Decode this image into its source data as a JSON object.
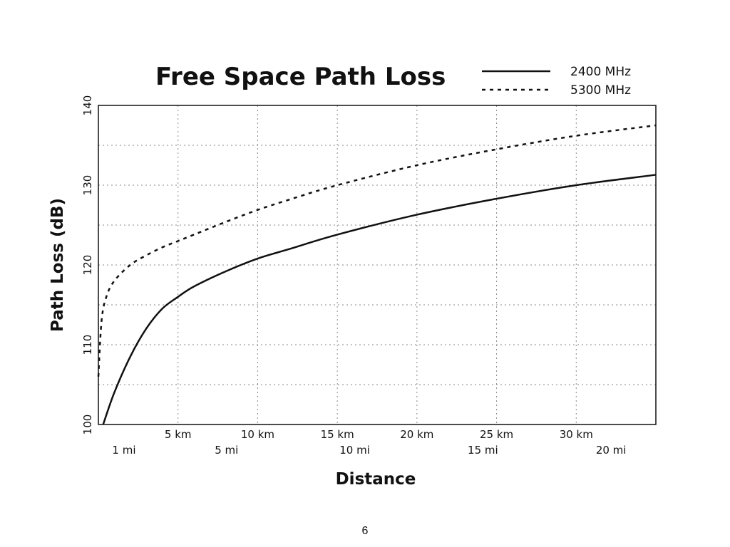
{
  "page_number": "6",
  "chart_data": {
    "type": "line",
    "title": "Free Space Path Loss",
    "xlabel": "Distance",
    "ylabel": "Path Loss (dB)",
    "xlim_km": [
      0,
      35
    ],
    "ylim": [
      100,
      140
    ],
    "yticks": [
      100,
      110,
      120,
      130,
      140
    ],
    "x_ticks_km": [
      {
        "value": 5,
        "label": "5 km"
      },
      {
        "value": 10,
        "label": "10 km"
      },
      {
        "value": 15,
        "label": "15 km"
      },
      {
        "value": 20,
        "label": "20 km"
      },
      {
        "value": 25,
        "label": "25 km"
      },
      {
        "value": 30,
        "label": "30 km"
      }
    ],
    "x_ticks_mi": [
      {
        "value": 1,
        "label": "1 mi"
      },
      {
        "value": 5,
        "label": "5 mi"
      },
      {
        "value": 10,
        "label": "10 mi"
      },
      {
        "value": 15,
        "label": "15 mi"
      },
      {
        "value": 20,
        "label": "20 mi"
      }
    ],
    "grid": true,
    "legend_position": "top-right",
    "series": [
      {
        "name": "2400 MHz",
        "style": "solid",
        "color": "#111111",
        "x": [
          0.3,
          1,
          2,
          3,
          4,
          5,
          6,
          8,
          10,
          12,
          15,
          20,
          25,
          30,
          35
        ],
        "y": [
          100,
          104,
          108.5,
          112,
          114.5,
          116,
          117.3,
          119.2,
          120.8,
          122,
          123.8,
          126.3,
          128.3,
          130,
          131.3
        ]
      },
      {
        "name": "5300 MHz",
        "style": "dashed",
        "color": "#111111",
        "x": [
          0,
          0.2,
          0.5,
          1,
          2,
          3,
          4,
          5,
          6,
          8,
          10,
          12,
          15,
          20,
          25,
          30,
          35
        ],
        "y": [
          106,
          113,
          116,
          118,
          120,
          121.2,
          122.2,
          123,
          123.8,
          125.4,
          126.9,
          128.2,
          130,
          132.5,
          134.5,
          136.2,
          137.5
        ]
      }
    ]
  }
}
